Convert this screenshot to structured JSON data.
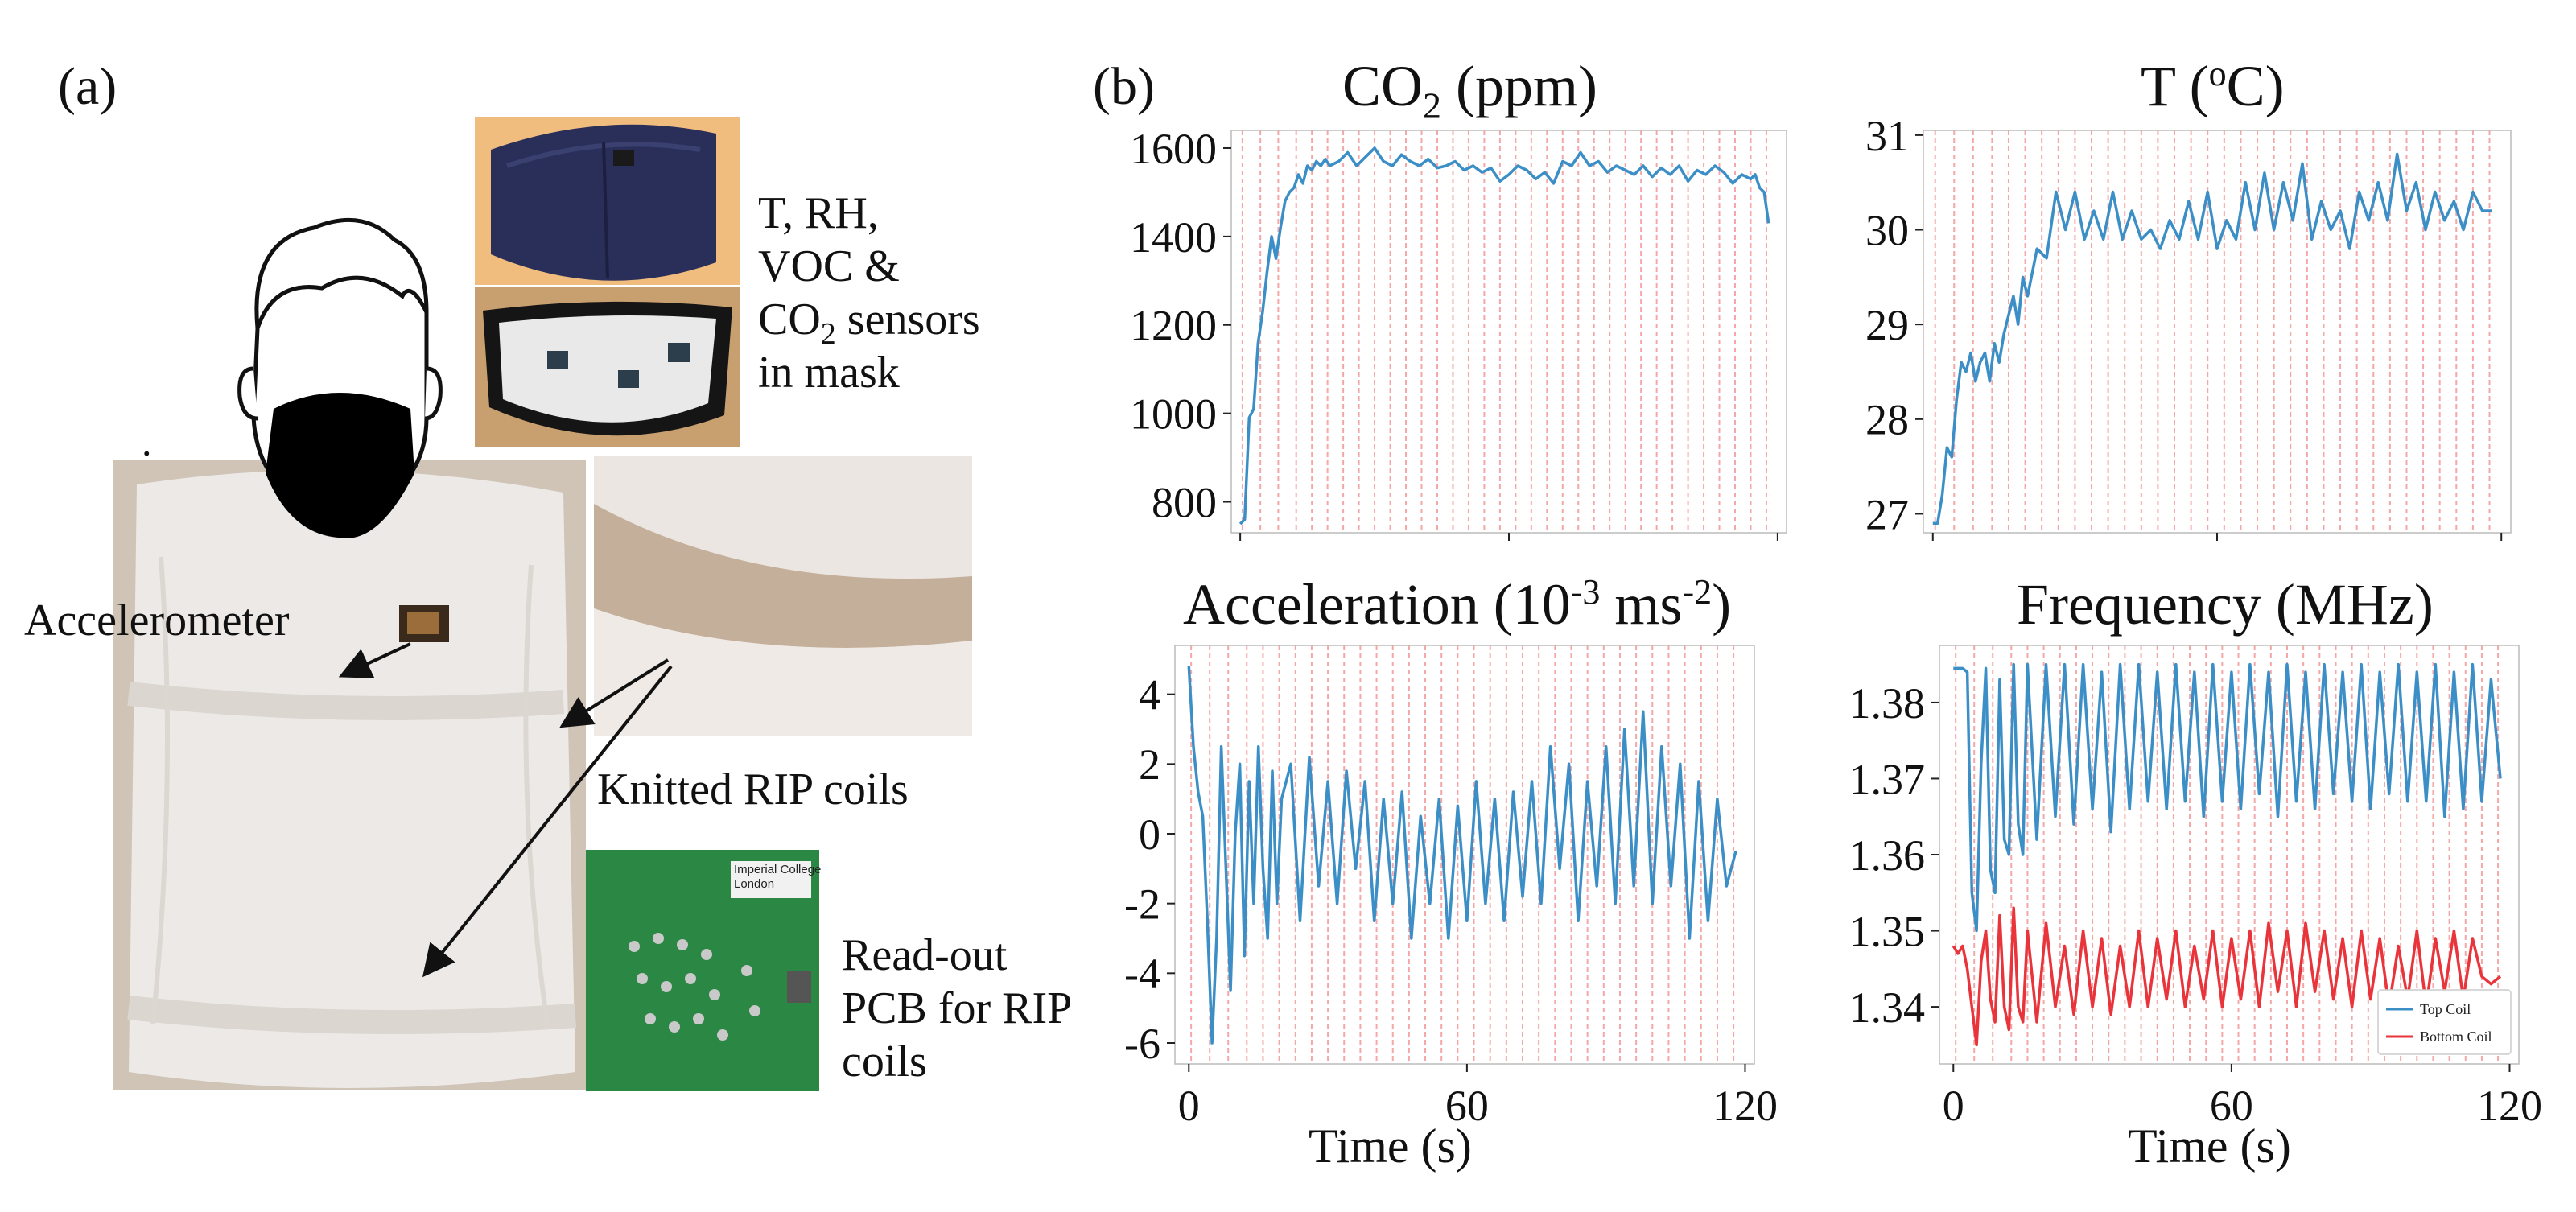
{
  "panel_a": {
    "label": "(a)",
    "mask_sensor_lines": [
      "T, RH,",
      "VOC &",
      "CO",
      "2",
      " sensors",
      "in mask"
    ],
    "accelerometer_label": "Accelerometer",
    "rip_coils_label": "Knitted RIP coils",
    "pcb_lines": [
      "Read-out",
      "PCB for RIP",
      "coils"
    ],
    "pcb_text_lines": [
      "Imperial College",
      "London"
    ],
    "dot": "."
  },
  "panel_b": {
    "label": "(b)"
  },
  "colors": {
    "line_blue": "#3b8fc6",
    "line_red": "#e8343a",
    "vline": "#f4a7a7",
    "axis": "#222222"
  },
  "chart_data": [
    {
      "id": "co2",
      "type": "line",
      "title_main": "CO",
      "title_sub": "2",
      "title_rest": " (ppm)",
      "xlabel": "",
      "ylabel": "",
      "xlim": [
        -2,
        122
      ],
      "ylim": [
        730,
        1640
      ],
      "yticks": [
        800,
        1000,
        1200,
        1400,
        1600
      ],
      "ytick_labels": [
        "800",
        "1000",
        "1200",
        "1400",
        "1600"
      ],
      "xticks": [
        0,
        60,
        120
      ],
      "xtick_labels": [],
      "breath_times": [
        0.5,
        4.5,
        8.5,
        12.5,
        16,
        19.5,
        23,
        26.5,
        30,
        33.5,
        37,
        40.5,
        44,
        47.5,
        51,
        54.5,
        58,
        61.5,
        65,
        68.5,
        72,
        75.5,
        79,
        82.5,
        86,
        89.5,
        93,
        96.5,
        100,
        103.5,
        107,
        110.5,
        114,
        117.5
      ],
      "series": [
        {
          "name": "CO2",
          "color": "#3b8fc6",
          "x": [
            0,
            1,
            2,
            3,
            4,
            5,
            6,
            7,
            8,
            9,
            10,
            11,
            12,
            13,
            14,
            15,
            16,
            17,
            18,
            19,
            20,
            22,
            24,
            26,
            28,
            30,
            32,
            34,
            36,
            38,
            40,
            42,
            44,
            46,
            48,
            50,
            52,
            54,
            56,
            58,
            60,
            62,
            64,
            66,
            68,
            70,
            72,
            74,
            76,
            78,
            80,
            82,
            84,
            86,
            88,
            90,
            92,
            94,
            96,
            98,
            100,
            102,
            104,
            106,
            108,
            110,
            112,
            114,
            115,
            116,
            117,
            118
          ],
          "values": [
            750,
            760,
            990,
            1010,
            1160,
            1230,
            1320,
            1400,
            1350,
            1420,
            1480,
            1500,
            1510,
            1540,
            1520,
            1560,
            1550,
            1570,
            1560,
            1575,
            1560,
            1570,
            1590,
            1560,
            1580,
            1600,
            1570,
            1560,
            1585,
            1570,
            1560,
            1575,
            1555,
            1560,
            1570,
            1550,
            1560,
            1545,
            1555,
            1525,
            1540,
            1560,
            1550,
            1530,
            1545,
            1520,
            1570,
            1560,
            1590,
            1560,
            1570,
            1545,
            1560,
            1550,
            1540,
            1560,
            1535,
            1555,
            1540,
            1560,
            1525,
            1550,
            1540,
            1560,
            1545,
            1520,
            1540,
            1530,
            1540,
            1510,
            1500,
            1430
          ]
        }
      ]
    },
    {
      "id": "temperature",
      "type": "line",
      "title_main": "T (",
      "title_sup": "o",
      "title_rest": "C)",
      "xlabel": "",
      "ylabel": "",
      "xlim": [
        -2,
        122
      ],
      "ylim": [
        26.8,
        31.05
      ],
      "yticks": [
        27,
        28,
        29,
        30,
        31
      ],
      "ytick_labels": [
        "27",
        "28",
        "29",
        "30",
        "31"
      ],
      "xticks": [
        0,
        60,
        120
      ],
      "xtick_labels": [],
      "breath_times": [
        0.5,
        4.5,
        8.5,
        12.5,
        16,
        19.5,
        23,
        26.5,
        30,
        33.5,
        37,
        40.5,
        44,
        47.5,
        51,
        54.5,
        58,
        61.5,
        65,
        68.5,
        72,
        75.5,
        79,
        82.5,
        86,
        89.5,
        93,
        96.5,
        100,
        103.5,
        107,
        110.5,
        114,
        117.5
      ],
      "series": [
        {
          "name": "T",
          "color": "#3b8fc6",
          "x": [
            0,
            1,
            2,
            3,
            4,
            5,
            6,
            7,
            8,
            9,
            10,
            11,
            12,
            13,
            14,
            15,
            16,
            17,
            18,
            19,
            20,
            22,
            24,
            26,
            28,
            30,
            32,
            34,
            36,
            38,
            40,
            42,
            44,
            46,
            48,
            50,
            52,
            54,
            56,
            58,
            60,
            62,
            64,
            66,
            68,
            70,
            72,
            74,
            76,
            78,
            80,
            82,
            84,
            86,
            88,
            90,
            92,
            94,
            96,
            98,
            100,
            102,
            104,
            106,
            108,
            110,
            112,
            114,
            116,
            118
          ],
          "values": [
            26.9,
            26.9,
            27.2,
            27.7,
            27.6,
            28.2,
            28.6,
            28.5,
            28.7,
            28.4,
            28.6,
            28.7,
            28.4,
            28.8,
            28.6,
            28.9,
            29.1,
            29.3,
            29.0,
            29.5,
            29.3,
            29.8,
            29.7,
            30.4,
            30.0,
            30.4,
            29.9,
            30.2,
            29.9,
            30.4,
            29.9,
            30.2,
            29.9,
            30.0,
            29.8,
            30.1,
            29.9,
            30.3,
            29.9,
            30.4,
            29.8,
            30.1,
            29.9,
            30.5,
            30.0,
            30.6,
            30.0,
            30.5,
            30.1,
            30.7,
            29.9,
            30.3,
            30.0,
            30.2,
            29.8,
            30.4,
            30.1,
            30.5,
            30.1,
            30.8,
            30.2,
            30.5,
            30.0,
            30.4,
            30.1,
            30.3,
            30.0,
            30.4,
            30.2,
            30.2
          ]
        }
      ]
    },
    {
      "id": "acceleration",
      "type": "line",
      "title_main": "Acceleration (10",
      "title_sup": "-3",
      "title_rest": " ms",
      "title_sup2": "-2",
      "title_end": ")",
      "xlabel": "Time (s)",
      "ylabel": "",
      "xlim": [
        -3,
        122
      ],
      "ylim": [
        -6.6,
        5.4
      ],
      "yticks": [
        -6,
        -4,
        -2,
        0,
        2,
        4
      ],
      "ytick_labels": [
        "-6",
        "-4",
        "-2",
        "0",
        "2",
        "4"
      ],
      "xticks": [
        0,
        60,
        120
      ],
      "xtick_labels": [
        "0",
        "60",
        "120"
      ],
      "breath_times": [
        0.5,
        4.5,
        8.5,
        12.5,
        16,
        19.5,
        23,
        26.5,
        30,
        33.5,
        37,
        40.5,
        44,
        47.5,
        51,
        54.5,
        58,
        61.5,
        65,
        68.5,
        72,
        75.5,
        79,
        82.5,
        86,
        89.5,
        93,
        96.5,
        100,
        103.5,
        107,
        110.5,
        114,
        117.5
      ],
      "series": [
        {
          "name": "Acceleration",
          "color": "#3b8fc6",
          "x": [
            0,
            1,
            2,
            3,
            4,
            5,
            6,
            7,
            8,
            9,
            10,
            11,
            12,
            13,
            14,
            15,
            16,
            17,
            18,
            19,
            20,
            22,
            24,
            26,
            28,
            30,
            32,
            34,
            36,
            38,
            40,
            42,
            44,
            46,
            48,
            50,
            52,
            54,
            56,
            58,
            60,
            62,
            64,
            66,
            68,
            70,
            72,
            74,
            76,
            78,
            80,
            82,
            84,
            86,
            88,
            90,
            92,
            94,
            96,
            98,
            100,
            102,
            104,
            106,
            108,
            110,
            112,
            114,
            116,
            118
          ],
          "values": [
            4.8,
            2.5,
            1.2,
            0.5,
            -2.5,
            -6.0,
            -3.0,
            2.5,
            -1.0,
            -4.5,
            0.0,
            2.0,
            -3.5,
            1.5,
            -2.0,
            2.5,
            -1.0,
            -3.0,
            1.8,
            -2.0,
            1.0,
            2.0,
            -2.5,
            2.2,
            -1.5,
            1.5,
            -2.0,
            1.8,
            -1.0,
            1.5,
            -2.5,
            1.0,
            -2.0,
            1.2,
            -3.0,
            0.5,
            -2.0,
            1.0,
            -3.0,
            0.8,
            -2.5,
            1.5,
            -2.0,
            1.0,
            -2.5,
            1.2,
            -1.8,
            1.5,
            -2.0,
            2.5,
            -1.0,
            2.0,
            -2.5,
            1.5,
            -1.5,
            2.5,
            -2.0,
            3.0,
            -1.5,
            3.5,
            -2.0,
            2.5,
            -1.5,
            2.0,
            -3.0,
            1.5,
            -2.5,
            1.0,
            -1.5,
            -0.5
          ]
        }
      ]
    },
    {
      "id": "frequency",
      "type": "line",
      "title_main": "Frequency (MHz)",
      "xlabel": "Time (s)",
      "ylabel": "",
      "xlim": [
        -3,
        122
      ],
      "ylim": [
        1.3325,
        1.3875
      ],
      "yticks": [
        1.34,
        1.35,
        1.36,
        1.37,
        1.38
      ],
      "ytick_labels": [
        "1.34",
        "1.35",
        "1.36",
        "1.37",
        "1.38"
      ],
      "xticks": [
        0,
        60,
        120
      ],
      "xtick_labels": [
        "0",
        "60",
        "120"
      ],
      "breath_times": [
        0.5,
        4.5,
        8.5,
        12.5,
        16,
        19.5,
        23,
        26.5,
        30,
        33.5,
        37,
        40.5,
        44,
        47.5,
        51,
        54.5,
        58,
        61.5,
        65,
        68.5,
        72,
        75.5,
        79,
        82.5,
        86,
        89.5,
        93,
        96.5,
        100,
        103.5,
        107,
        110.5,
        114,
        117.5
      ],
      "legend": {
        "position": "bottom-right",
        "entries": [
          "Top Coil",
          "Bottom Coil"
        ]
      },
      "series": [
        {
          "name": "Top Coil",
          "color": "#3b8fc6",
          "x": [
            0,
            2,
            3,
            4,
            5,
            6,
            7,
            8,
            9,
            10,
            11,
            12,
            13,
            14,
            15,
            16,
            18,
            20,
            22,
            24,
            26,
            28,
            30,
            32,
            34,
            36,
            38,
            40,
            42,
            44,
            46,
            48,
            50,
            52,
            54,
            56,
            58,
            60,
            62,
            64,
            66,
            68,
            70,
            72,
            74,
            76,
            78,
            80,
            82,
            84,
            86,
            88,
            90,
            92,
            94,
            96,
            98,
            100,
            102,
            104,
            106,
            108,
            110,
            112,
            114,
            116,
            118
          ],
          "values": [
            1.3845,
            1.3845,
            1.384,
            1.355,
            1.35,
            1.372,
            1.3845,
            1.358,
            1.355,
            1.383,
            1.362,
            1.36,
            1.385,
            1.364,
            1.36,
            1.385,
            1.362,
            1.385,
            1.365,
            1.385,
            1.364,
            1.385,
            1.366,
            1.384,
            1.363,
            1.385,
            1.366,
            1.385,
            1.367,
            1.384,
            1.366,
            1.385,
            1.367,
            1.384,
            1.365,
            1.385,
            1.367,
            1.384,
            1.366,
            1.385,
            1.368,
            1.384,
            1.365,
            1.385,
            1.367,
            1.384,
            1.366,
            1.385,
            1.368,
            1.384,
            1.367,
            1.385,
            1.366,
            1.384,
            1.368,
            1.385,
            1.367,
            1.384,
            1.367,
            1.385,
            1.365,
            1.384,
            1.366,
            1.385,
            1.367,
            1.383,
            1.37
          ]
        },
        {
          "name": "Bottom Coil",
          "color": "#e8343a",
          "x": [
            0,
            1,
            2,
            3,
            4,
            5,
            6,
            7,
            8,
            9,
            10,
            11,
            12,
            13,
            14,
            15,
            16,
            18,
            20,
            22,
            24,
            26,
            28,
            30,
            32,
            34,
            36,
            38,
            40,
            42,
            44,
            46,
            48,
            50,
            52,
            54,
            56,
            58,
            60,
            62,
            64,
            66,
            68,
            70,
            72,
            74,
            76,
            78,
            80,
            82,
            84,
            86,
            88,
            90,
            92,
            94,
            96,
            98,
            100,
            102,
            104,
            106,
            108,
            110,
            112,
            114,
            116,
            118
          ],
          "values": [
            1.348,
            1.347,
            1.348,
            1.345,
            1.34,
            1.335,
            1.346,
            1.35,
            1.341,
            1.338,
            1.352,
            1.34,
            1.337,
            1.353,
            1.34,
            1.338,
            1.35,
            1.338,
            1.351,
            1.34,
            1.348,
            1.339,
            1.35,
            1.34,
            1.349,
            1.339,
            1.348,
            1.34,
            1.35,
            1.34,
            1.349,
            1.341,
            1.35,
            1.34,
            1.348,
            1.341,
            1.35,
            1.34,
            1.349,
            1.341,
            1.35,
            1.34,
            1.351,
            1.342,
            1.35,
            1.34,
            1.351,
            1.342,
            1.35,
            1.341,
            1.349,
            1.34,
            1.35,
            1.341,
            1.349,
            1.34,
            1.348,
            1.341,
            1.35,
            1.34,
            1.349,
            1.342,
            1.35,
            1.341,
            1.349,
            1.344,
            1.343,
            1.344
          ]
        }
      ]
    }
  ]
}
